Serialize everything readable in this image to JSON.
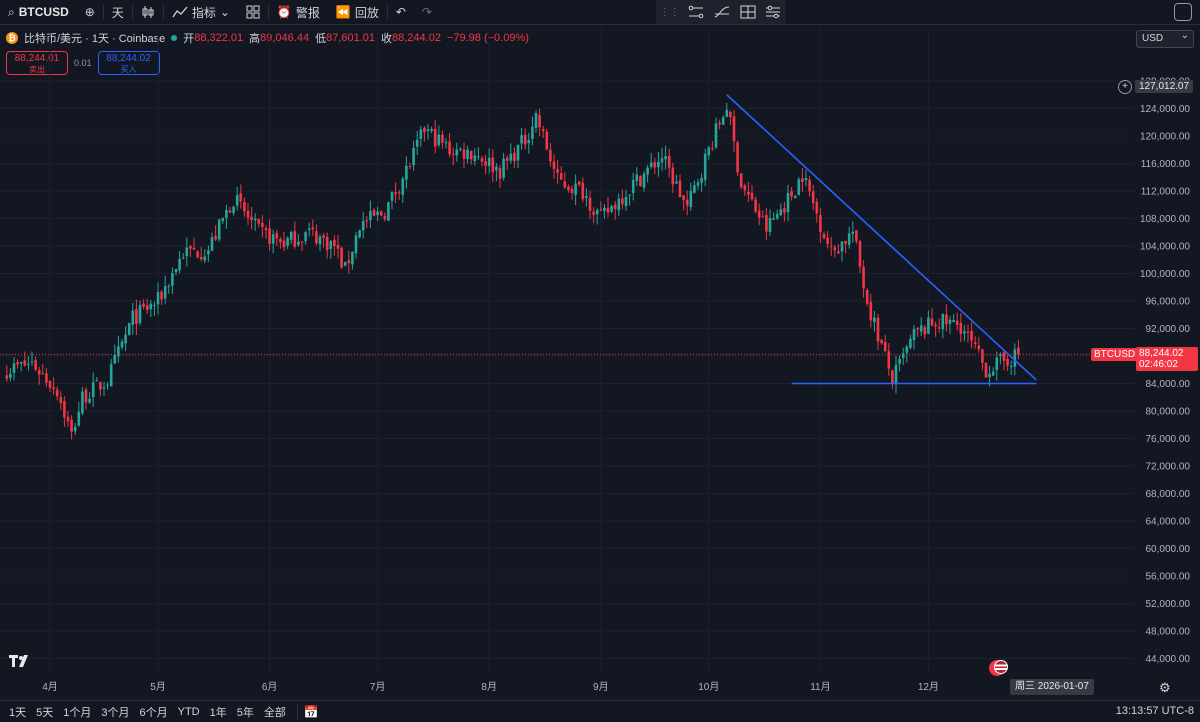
{
  "toolbar": {
    "symbol": "BTCUSD",
    "interval": "天",
    "indicators_label": "指标",
    "alert_label": "警报",
    "replay_label": "回放"
  },
  "legend": {
    "title": "比特币/美元 · 1天 · Coinbase",
    "open_label": "开",
    "open": "88,322.01",
    "high_label": "高",
    "high": "89,046.44",
    "low_label": "低",
    "low": "87,601.01",
    "close_label": "收",
    "close": "88,244.02",
    "change": "−79.98 (−0.09%)"
  },
  "trade": {
    "sell_price": "88,244.01",
    "sell_label": "卖出",
    "spread": "0.01",
    "buy_price": "88,244.02",
    "buy_label": "买入"
  },
  "currency": "USD",
  "price_axis": {
    "ticks": [
      "128,000.00",
      "124,000.00",
      "120,000.00",
      "116,000.00",
      "112,000.00",
      "108,000.00",
      "104,000.00",
      "100,000.00",
      "96,000.00",
      "92,000.00",
      "88,000.00",
      "84,000.00",
      "80,000.00",
      "76,000.00",
      "72,000.00",
      "68,000.00",
      "64,000.00",
      "60,000.00",
      "56,000.00",
      "52,000.00",
      "48,000.00",
      "44,000.00"
    ],
    "crosshair_price": "127,012.07",
    "current_symbol": "BTCUSD",
    "current_price": "88,244.02",
    "countdown": "02:46:02"
  },
  "time_axis": {
    "labels": [
      "4月",
      "5月",
      "6月",
      "7月",
      "8月",
      "9月",
      "10月",
      "11月",
      "12月"
    ],
    "crosshair_date": "周三 2026-01-07"
  },
  "bottom": {
    "ranges": [
      "1天",
      "5天",
      "1个月",
      "3个月",
      "6个月",
      "YTD",
      "1年",
      "5年",
      "全部"
    ],
    "clock": "13:13:57 UTC-8"
  },
  "colors": {
    "up": "#26a69a",
    "down": "#f23645",
    "trendline": "#2962ff",
    "background": "#131722"
  },
  "chart_data": {
    "type": "candlestick",
    "symbol": "BTCUSD",
    "interval": "1D",
    "ylim": [
      42000,
      130000
    ],
    "grid": true,
    "close_path": [
      [
        "03-20",
        86000
      ],
      [
        "03-27",
        87000
      ],
      [
        "04-03",
        83000
      ],
      [
        "04-07",
        76500
      ],
      [
        "04-10",
        82000
      ],
      [
        "04-17",
        84500
      ],
      [
        "04-24",
        93500
      ],
      [
        "05-01",
        96000
      ],
      [
        "05-08",
        103000
      ],
      [
        "05-15",
        103500
      ],
      [
        "05-22",
        111000
      ],
      [
        "05-29",
        106000
      ],
      [
        "06-05",
        104500
      ],
      [
        "06-12",
        106000
      ],
      [
        "06-19",
        104000
      ],
      [
        "06-22",
        100500
      ],
      [
        "06-26",
        107000
      ],
      [
        "07-03",
        109000
      ],
      [
        "07-10",
        116000
      ],
      [
        "07-14",
        121000
      ],
      [
        "07-21",
        118000
      ],
      [
        "07-28",
        117500
      ],
      [
        "08-04",
        115000
      ],
      [
        "08-11",
        119500
      ],
      [
        "08-14",
        123000
      ],
      [
        "08-20",
        113500
      ],
      [
        "08-27",
        112000
      ],
      [
        "09-01",
        108000
      ],
      [
        "09-10",
        113000
      ],
      [
        "09-18",
        117000
      ],
      [
        "09-25",
        109500
      ],
      [
        "10-01",
        118000
      ],
      [
        "10-06",
        124500
      ],
      [
        "10-10",
        113000
      ],
      [
        "10-17",
        106500
      ],
      [
        "10-24",
        111500
      ],
      [
        "10-27",
        114500
      ],
      [
        "11-04",
        103000
      ],
      [
        "11-10",
        106000
      ],
      [
        "11-14",
        96000
      ],
      [
        "11-21",
        84500
      ],
      [
        "11-27",
        91000
      ],
      [
        "12-03",
        93000
      ],
      [
        "12-10",
        92500
      ],
      [
        "12-17",
        86000
      ],
      [
        "12-23",
        87500
      ],
      [
        "12-26",
        88244
      ]
    ],
    "trendlines": [
      {
        "from": [
          "10-06",
          126000
        ],
        "to": [
          "12-31",
          84500
        ]
      },
      {
        "from": [
          "10-24",
          84000
        ],
        "to": [
          "12-31",
          84000
        ]
      }
    ]
  }
}
